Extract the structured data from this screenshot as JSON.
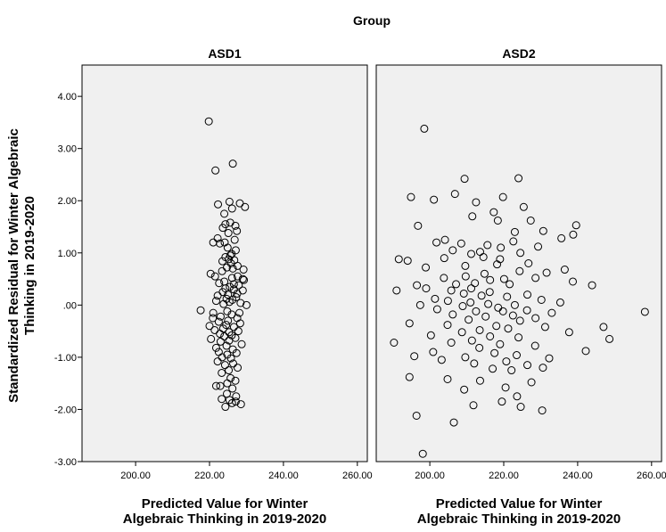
{
  "chart_data": {
    "type": "scatter",
    "facet_title": "Group",
    "ylabel_lines": [
      "Standardized Residual for Winter Algebraic",
      "Thinking in 2019-2020"
    ],
    "ylim": [
      -3.0,
      4.6
    ],
    "yticks": [
      -3.0,
      -2.0,
      -1.0,
      0.0,
      1.0,
      2.0,
      3.0,
      4.0
    ],
    "ytick_labels": [
      "-3.00",
      "-2.00",
      "-1.00",
      ".00",
      "1.00",
      "2.00",
      "3.00",
      "4.00"
    ],
    "grid": false,
    "panels": [
      {
        "title": "ASD1",
        "xlabel_lines": [
          "Predicted Value for Winter",
          "Algebraic Thinking in 2019-2020"
        ],
        "xlim": [
          185.5,
          262.7
        ],
        "xticks": [
          200,
          220,
          240,
          260
        ],
        "xtick_labels": [
          "200.00",
          "220.00",
          "240.00",
          "260.00"
        ],
        "points": [
          [
            219.8,
            3.52
          ],
          [
            221.6,
            2.58
          ],
          [
            226.3,
            2.71
          ],
          [
            222.3,
            1.93
          ],
          [
            225.4,
            1.98
          ],
          [
            228.2,
            1.95
          ],
          [
            229.6,
            1.88
          ],
          [
            226.1,
            1.85
          ],
          [
            224.0,
            1.75
          ],
          [
            225.6,
            1.58
          ],
          [
            224.3,
            1.55
          ],
          [
            227.0,
            1.52
          ],
          [
            223.6,
            1.48
          ],
          [
            227.4,
            1.42
          ],
          [
            225.1,
            1.38
          ],
          [
            222.2,
            1.28
          ],
          [
            226.8,
            1.25
          ],
          [
            224.1,
            1.2
          ],
          [
            221.0,
            1.2
          ],
          [
            222.8,
            1.18
          ],
          [
            224.9,
            1.1
          ],
          [
            227.1,
            1.05
          ],
          [
            226.0,
            0.98
          ],
          [
            225.6,
            0.95
          ],
          [
            224.3,
            0.92
          ],
          [
            225.2,
            0.88
          ],
          [
            226.7,
            0.86
          ],
          [
            223.5,
            0.84
          ],
          [
            225.8,
            0.8
          ],
          [
            227.6,
            0.75
          ],
          [
            224.7,
            0.72
          ],
          [
            226.3,
            0.7
          ],
          [
            229.2,
            0.68
          ],
          [
            223.4,
            0.65
          ],
          [
            220.3,
            0.6
          ],
          [
            221.5,
            0.55
          ],
          [
            227.6,
            0.55
          ],
          [
            226.1,
            0.52
          ],
          [
            229.0,
            0.5
          ],
          [
            229.3,
            0.48
          ],
          [
            224.0,
            0.45
          ],
          [
            222.6,
            0.42
          ],
          [
            226.6,
            0.4
          ],
          [
            227.9,
            0.38
          ],
          [
            225.5,
            0.35
          ],
          [
            224.3,
            0.32
          ],
          [
            226.6,
            0.3
          ],
          [
            229.0,
            0.28
          ],
          [
            223.6,
            0.25
          ],
          [
            227.5,
            0.22
          ],
          [
            225.0,
            0.2
          ],
          [
            222.2,
            0.18
          ],
          [
            227.2,
            0.15
          ],
          [
            224.6,
            0.12
          ],
          [
            226.2,
            0.1
          ],
          [
            221.8,
            0.08
          ],
          [
            225.4,
            0.06
          ],
          [
            228.4,
            0.04
          ],
          [
            223.8,
            0.02
          ],
          [
            230.0,
            0.0
          ],
          [
            217.6,
            -0.1
          ],
          [
            221.0,
            -0.15
          ],
          [
            224.8,
            -0.12
          ],
          [
            228.1,
            -0.15
          ],
          [
            226.0,
            -0.18
          ],
          [
            223.0,
            -0.22
          ],
          [
            220.9,
            -0.25
          ],
          [
            227.5,
            -0.25
          ],
          [
            225.0,
            -0.3
          ],
          [
            222.5,
            -0.32
          ],
          [
            228.3,
            -0.35
          ],
          [
            224.5,
            -0.38
          ],
          [
            220.0,
            -0.4
          ],
          [
            226.6,
            -0.42
          ],
          [
            223.7,
            -0.45
          ],
          [
            221.4,
            -0.48
          ],
          [
            227.8,
            -0.5
          ],
          [
            225.3,
            -0.52
          ],
          [
            222.8,
            -0.55
          ],
          [
            226.0,
            -0.58
          ],
          [
            224.0,
            -0.6
          ],
          [
            227.0,
            -0.63
          ],
          [
            220.4,
            -0.65
          ],
          [
            225.3,
            -0.68
          ],
          [
            223.0,
            -0.7
          ],
          [
            228.7,
            -0.75
          ],
          [
            224.6,
            -0.78
          ],
          [
            221.8,
            -0.82
          ],
          [
            226.3,
            -0.85
          ],
          [
            222.5,
            -0.9
          ],
          [
            227.3,
            -0.92
          ],
          [
            224.8,
            -0.95
          ],
          [
            223.4,
            -1.0
          ],
          [
            225.8,
            -1.02
          ],
          [
            222.2,
            -1.08
          ],
          [
            226.4,
            -1.12
          ],
          [
            224.2,
            -1.15
          ],
          [
            227.6,
            -1.2
          ],
          [
            225.2,
            -1.25
          ],
          [
            223.3,
            -1.3
          ],
          [
            225.7,
            -1.4
          ],
          [
            227.0,
            -1.45
          ],
          [
            224.8,
            -1.5
          ],
          [
            221.8,
            -1.55
          ],
          [
            222.9,
            -1.55
          ],
          [
            226.2,
            -1.6
          ],
          [
            224.7,
            -1.7
          ],
          [
            227.2,
            -1.75
          ],
          [
            223.3,
            -1.8
          ],
          [
            225.4,
            -1.82
          ],
          [
            227.1,
            -1.85
          ],
          [
            226.1,
            -1.88
          ],
          [
            228.5,
            -1.9
          ],
          [
            224.3,
            -1.95
          ]
        ]
      },
      {
        "title": "ASD2",
        "xlabel_lines": [
          "Predicted Value for Winter",
          "Algebraic Thinking in 2019-2020"
        ],
        "xlim": [
          185.5,
          262.7
        ],
        "xticks": [
          200,
          220,
          240,
          260
        ],
        "xtick_labels": [
          "200.00",
          "220.00",
          "240.00",
          "260.00"
        ],
        "points": [
          [
            198.5,
            3.38
          ],
          [
            209.4,
            2.42
          ],
          [
            224.0,
            2.43
          ],
          [
            206.8,
            2.13
          ],
          [
            194.9,
            2.07
          ],
          [
            201.1,
            2.02
          ],
          [
            212.5,
            1.97
          ],
          [
            219.8,
            2.07
          ],
          [
            225.4,
            1.88
          ],
          [
            217.3,
            1.78
          ],
          [
            211.5,
            1.7
          ],
          [
            227.3,
            1.62
          ],
          [
            196.8,
            1.52
          ],
          [
            218.4,
            1.62
          ],
          [
            239.6,
            1.53
          ],
          [
            230.7,
            1.42
          ],
          [
            223.0,
            1.4
          ],
          [
            204.1,
            1.25
          ],
          [
            235.6,
            1.28
          ],
          [
            201.8,
            1.2
          ],
          [
            222.6,
            1.22
          ],
          [
            208.5,
            1.18
          ],
          [
            215.6,
            1.15
          ],
          [
            219.2,
            1.1
          ],
          [
            229.3,
            1.12
          ],
          [
            213.6,
            1.02
          ],
          [
            206.2,
            1.05
          ],
          [
            211.2,
            0.98
          ],
          [
            224.5,
            1.0
          ],
          [
            238.8,
            1.35
          ],
          [
            194.0,
            0.85
          ],
          [
            191.6,
            0.88
          ],
          [
            203.9,
            0.9
          ],
          [
            214.5,
            0.92
          ],
          [
            219.0,
            0.88
          ],
          [
            226.7,
            0.8
          ],
          [
            218.2,
            0.78
          ],
          [
            209.6,
            0.75
          ],
          [
            198.9,
            0.72
          ],
          [
            236.5,
            0.68
          ],
          [
            231.6,
            0.62
          ],
          [
            224.3,
            0.65
          ],
          [
            214.8,
            0.6
          ],
          [
            209.7,
            0.55
          ],
          [
            203.8,
            0.52
          ],
          [
            220.1,
            0.5
          ],
          [
            238.7,
            0.45
          ],
          [
            228.6,
            0.52
          ],
          [
            216.3,
            0.48
          ],
          [
            212.2,
            0.42
          ],
          [
            207.1,
            0.4
          ],
          [
            196.5,
            0.38
          ],
          [
            221.6,
            0.4
          ],
          [
            243.9,
            0.38
          ],
          [
            211.2,
            0.32
          ],
          [
            205.8,
            0.28
          ],
          [
            216.2,
            0.25
          ],
          [
            191.0,
            0.28
          ],
          [
            199.0,
            0.32
          ],
          [
            209.2,
            0.22
          ],
          [
            226.4,
            0.2
          ],
          [
            214.0,
            0.18
          ],
          [
            220.9,
            0.16
          ],
          [
            201.4,
            0.12
          ],
          [
            230.2,
            0.1
          ],
          [
            204.9,
            0.08
          ],
          [
            211.0,
            0.05
          ],
          [
            235.3,
            0.05
          ],
          [
            215.8,
            0.02
          ],
          [
            223.0,
            0.0
          ],
          [
            197.4,
            0.0
          ],
          [
            208.9,
            -0.02
          ],
          [
            218.5,
            -0.05
          ],
          [
            202.0,
            -0.08
          ],
          [
            226.3,
            -0.1
          ],
          [
            212.5,
            -0.12
          ],
          [
            219.8,
            -0.12
          ],
          [
            233.0,
            -0.15
          ],
          [
            206.2,
            -0.18
          ],
          [
            222.5,
            -0.2
          ],
          [
            215.1,
            -0.22
          ],
          [
            228.6,
            -0.25
          ],
          [
            210.5,
            -0.28
          ],
          [
            224.4,
            -0.3
          ],
          [
            194.5,
            -0.35
          ],
          [
            204.8,
            -0.38
          ],
          [
            218.0,
            -0.4
          ],
          [
            231.2,
            -0.42
          ],
          [
            247.0,
            -0.42
          ],
          [
            258.2,
            -0.13
          ],
          [
            221.2,
            -0.45
          ],
          [
            213.5,
            -0.48
          ],
          [
            208.7,
            -0.52
          ],
          [
            237.7,
            -0.52
          ],
          [
            200.3,
            -0.58
          ],
          [
            216.3,
            -0.6
          ],
          [
            224.0,
            -0.62
          ],
          [
            248.6,
            -0.65
          ],
          [
            211.4,
            -0.68
          ],
          [
            190.3,
            -0.72
          ],
          [
            205.8,
            -0.72
          ],
          [
            219.0,
            -0.75
          ],
          [
            228.5,
            -0.78
          ],
          [
            213.4,
            -0.82
          ],
          [
            242.2,
            -0.88
          ],
          [
            200.9,
            -0.9
          ],
          [
            217.5,
            -0.92
          ],
          [
            223.5,
            -0.96
          ],
          [
            195.8,
            -0.98
          ],
          [
            209.6,
            -1.0
          ],
          [
            232.3,
            -1.02
          ],
          [
            203.2,
            -1.05
          ],
          [
            220.7,
            -1.08
          ],
          [
            212.0,
            -1.12
          ],
          [
            226.4,
            -1.15
          ],
          [
            217.0,
            -1.22
          ],
          [
            194.5,
            -1.38
          ],
          [
            230.6,
            -1.2
          ],
          [
            222.1,
            -1.25
          ],
          [
            204.8,
            -1.42
          ],
          [
            227.5,
            -1.48
          ],
          [
            213.6,
            -1.45
          ],
          [
            209.3,
            -1.62
          ],
          [
            220.5,
            -1.58
          ],
          [
            223.6,
            -1.75
          ],
          [
            211.8,
            -1.92
          ],
          [
            219.5,
            -1.85
          ],
          [
            206.5,
            -2.25
          ],
          [
            196.4,
            -2.12
          ],
          [
            230.4,
            -2.02
          ],
          [
            224.6,
            -1.95
          ],
          [
            198.1,
            -2.85
          ]
        ]
      }
    ]
  }
}
